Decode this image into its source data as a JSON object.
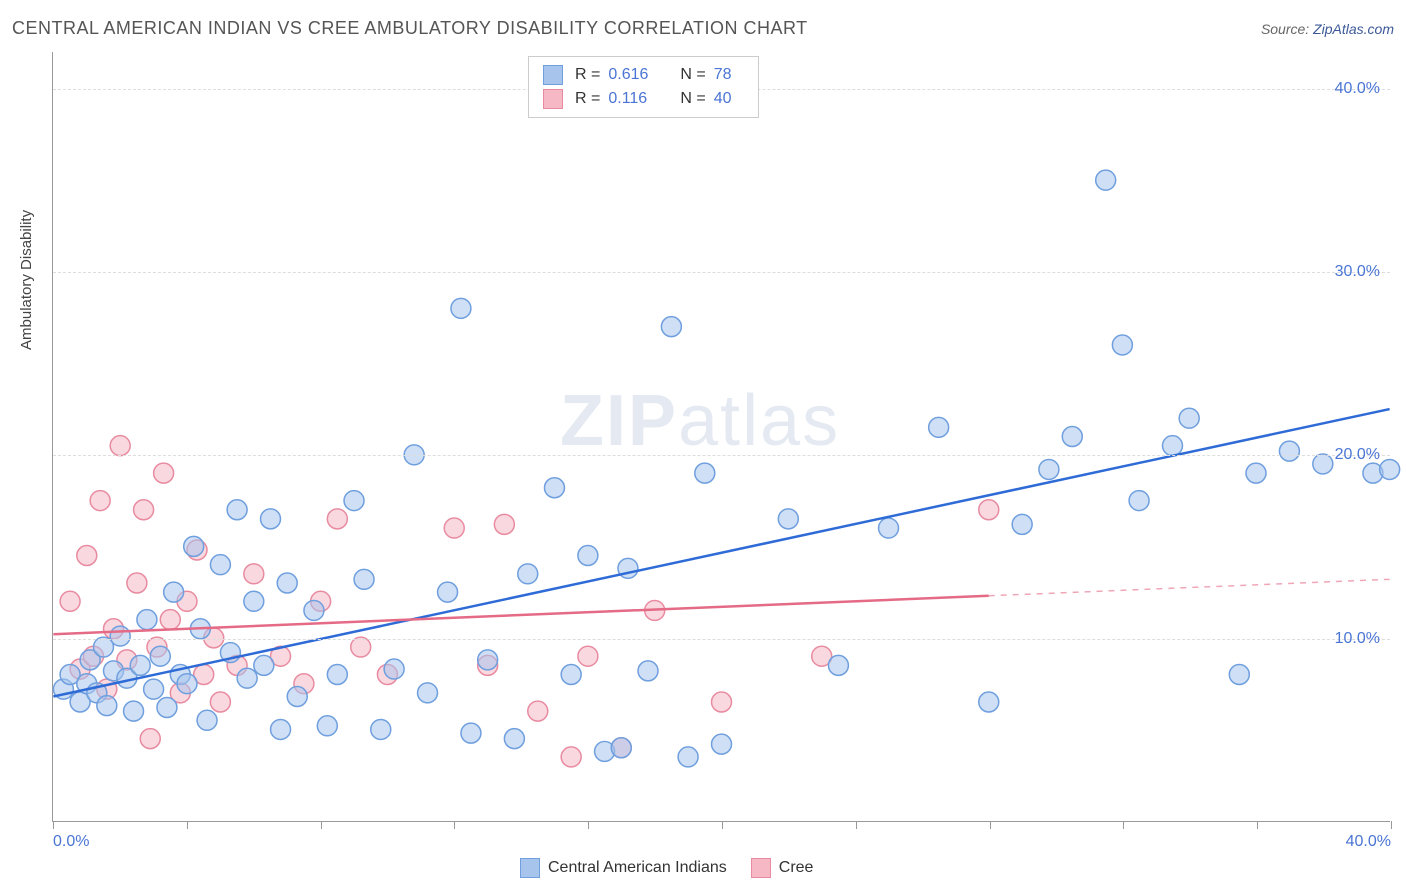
{
  "header": {
    "title": "CENTRAL AMERICAN INDIAN VS CREE AMBULATORY DISABILITY CORRELATION CHART",
    "source_prefix": "Source: ",
    "source_link": "ZipAtlas.com"
  },
  "watermark": {
    "zip": "ZIP",
    "atlas": "atlas"
  },
  "chart": {
    "type": "scatter",
    "background_color": "#ffffff",
    "grid_color": "#dddddd",
    "axis_color": "#999999",
    "xlim": [
      0,
      40
    ],
    "ylim": [
      0,
      42
    ],
    "xticks": [
      0,
      4,
      8,
      12,
      16,
      20,
      24,
      28,
      32,
      36,
      40
    ],
    "xticks_labeled": {
      "0": "0.0%",
      "40": "40.0%"
    },
    "yticks": [
      10,
      20,
      30,
      40
    ],
    "ytick_labels": [
      "10.0%",
      "20.0%",
      "30.0%",
      "40.0%"
    ],
    "ylabel": "Ambulatory Disability",
    "marker_radius": 10,
    "marker_opacity": 0.55,
    "marker_stroke_width": 1.5,
    "line_width": 2.5,
    "label_fontsize": 15,
    "tick_fontsize": 16,
    "tick_color": "#4a75d4"
  },
  "series": {
    "a": {
      "name": "Central American Indians",
      "color_fill": "#a7c5ec",
      "color_stroke": "#6f9fde",
      "line_color": "#2e6bd6",
      "R": "0.616",
      "N": "78",
      "regression": {
        "x1": 0,
        "y1": 6.8,
        "x2": 40,
        "y2": 22.5,
        "solid_to_x": 40
      },
      "points": [
        [
          0.3,
          7.2
        ],
        [
          0.5,
          8.0
        ],
        [
          0.8,
          6.5
        ],
        [
          1.0,
          7.5
        ],
        [
          1.1,
          8.8
        ],
        [
          1.3,
          7.0
        ],
        [
          1.5,
          9.5
        ],
        [
          1.6,
          6.3
        ],
        [
          1.8,
          8.2
        ],
        [
          2.0,
          10.1
        ],
        [
          2.2,
          7.8
        ],
        [
          2.4,
          6.0
        ],
        [
          2.6,
          8.5
        ],
        [
          2.8,
          11.0
        ],
        [
          3.0,
          7.2
        ],
        [
          3.2,
          9.0
        ],
        [
          3.4,
          6.2
        ],
        [
          3.6,
          12.5
        ],
        [
          3.8,
          8.0
        ],
        [
          4.0,
          7.5
        ],
        [
          4.2,
          15.0
        ],
        [
          4.4,
          10.5
        ],
        [
          4.6,
          5.5
        ],
        [
          5.0,
          14.0
        ],
        [
          5.3,
          9.2
        ],
        [
          5.5,
          17.0
        ],
        [
          5.8,
          7.8
        ],
        [
          6.0,
          12.0
        ],
        [
          6.3,
          8.5
        ],
        [
          6.5,
          16.5
        ],
        [
          7.0,
          13.0
        ],
        [
          7.3,
          6.8
        ],
        [
          7.8,
          11.5
        ],
        [
          8.2,
          5.2
        ],
        [
          8.5,
          8.0
        ],
        [
          9.0,
          17.5
        ],
        [
          9.3,
          13.2
        ],
        [
          9.8,
          5.0
        ],
        [
          10.2,
          8.3
        ],
        [
          10.8,
          20.0
        ],
        [
          11.2,
          7.0
        ],
        [
          11.8,
          12.5
        ],
        [
          12.2,
          28.0
        ],
        [
          12.5,
          4.8
        ],
        [
          13.0,
          8.8
        ],
        [
          13.8,
          4.5
        ],
        [
          14.2,
          13.5
        ],
        [
          15.0,
          18.2
        ],
        [
          15.5,
          8.0
        ],
        [
          16.0,
          14.5
        ],
        [
          16.5,
          3.8
        ],
        [
          17.0,
          4.0
        ],
        [
          17.2,
          13.8
        ],
        [
          17.8,
          8.2
        ],
        [
          18.5,
          27.0
        ],
        [
          19.0,
          3.5
        ],
        [
          19.5,
          19.0
        ],
        [
          20.0,
          4.2
        ],
        [
          22.0,
          16.5
        ],
        [
          23.5,
          8.5
        ],
        [
          25.0,
          16.0
        ],
        [
          26.5,
          21.5
        ],
        [
          28.0,
          6.5
        ],
        [
          29.0,
          16.2
        ],
        [
          29.8,
          19.2
        ],
        [
          30.5,
          21.0
        ],
        [
          31.5,
          35.0
        ],
        [
          32.0,
          26.0
        ],
        [
          32.5,
          17.5
        ],
        [
          33.5,
          20.5
        ],
        [
          34.0,
          22.0
        ],
        [
          35.5,
          8.0
        ],
        [
          36.0,
          19.0
        ],
        [
          37.0,
          20.2
        ],
        [
          38.0,
          19.5
        ],
        [
          39.5,
          19.0
        ],
        [
          40.0,
          19.2
        ],
        [
          6.8,
          5.0
        ]
      ]
    },
    "b": {
      "name": "Cree",
      "color_fill": "#f5b8c4",
      "color_stroke": "#e88ba0",
      "line_color": "#e46a86",
      "R": "0.116",
      "N": "40",
      "regression": {
        "x1": 0,
        "y1": 10.2,
        "x2": 40,
        "y2": 13.2,
        "solid_to_x": 28
      },
      "points": [
        [
          0.5,
          12.0
        ],
        [
          0.8,
          8.3
        ],
        [
          1.0,
          14.5
        ],
        [
          1.2,
          9.0
        ],
        [
          1.4,
          17.5
        ],
        [
          1.6,
          7.2
        ],
        [
          1.8,
          10.5
        ],
        [
          2.0,
          20.5
        ],
        [
          2.2,
          8.8
        ],
        [
          2.5,
          13.0
        ],
        [
          2.7,
          17.0
        ],
        [
          2.9,
          4.5
        ],
        [
          3.1,
          9.5
        ],
        [
          3.3,
          19.0
        ],
        [
          3.5,
          11.0
        ],
        [
          3.8,
          7.0
        ],
        [
          4.0,
          12.0
        ],
        [
          4.3,
          14.8
        ],
        [
          4.5,
          8.0
        ],
        [
          4.8,
          10.0
        ],
        [
          5.0,
          6.5
        ],
        [
          5.5,
          8.5
        ],
        [
          6.0,
          13.5
        ],
        [
          6.8,
          9.0
        ],
        [
          7.5,
          7.5
        ],
        [
          8.0,
          12.0
        ],
        [
          8.5,
          16.5
        ],
        [
          9.2,
          9.5
        ],
        [
          10.0,
          8.0
        ],
        [
          12.0,
          16.0
        ],
        [
          13.0,
          8.5
        ],
        [
          13.5,
          16.2
        ],
        [
          14.5,
          6.0
        ],
        [
          15.5,
          3.5
        ],
        [
          16.0,
          9.0
        ],
        [
          17.0,
          4.0
        ],
        [
          18.0,
          11.5
        ],
        [
          20.0,
          6.5
        ],
        [
          23.0,
          9.0
        ],
        [
          28.0,
          17.0
        ]
      ]
    }
  },
  "legend_bottom": {
    "a_label": "Central American Indians",
    "b_label": "Cree"
  },
  "legend_top": {
    "r_text": "R =",
    "n_text": "N ="
  }
}
